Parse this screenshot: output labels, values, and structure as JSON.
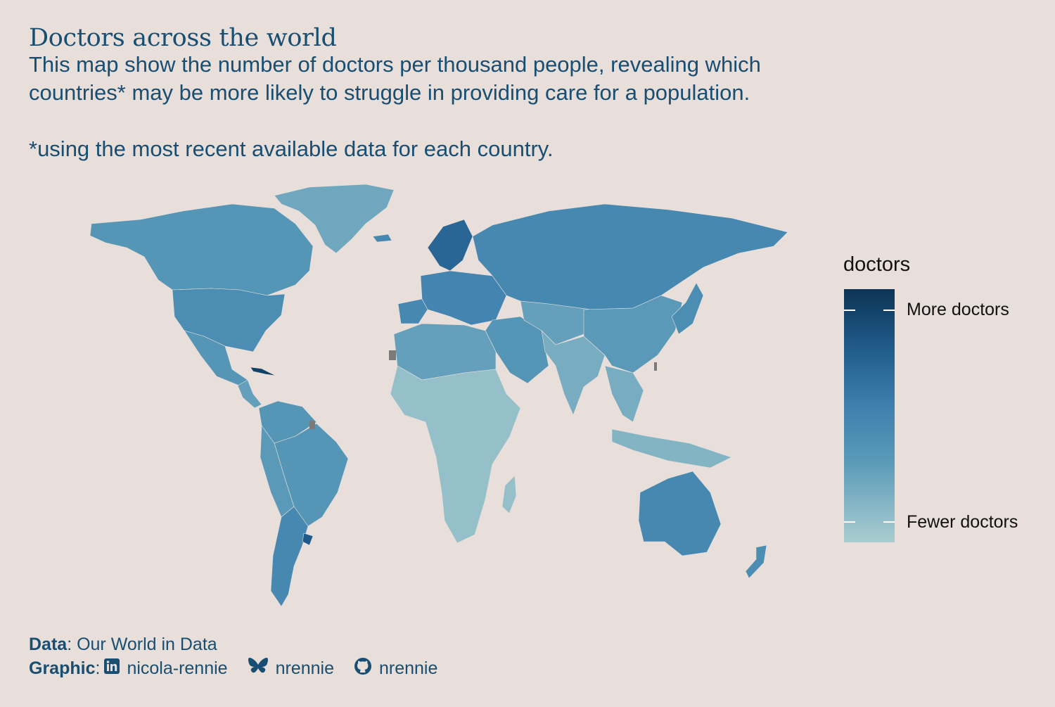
{
  "title": "Doctors across the world",
  "subtitle": {
    "line1": "This map show the number of doctors per thousand people, revealing which",
    "line2": "countries* may be more likely to struggle in providing care for a population.",
    "note": "*using the most recent available data for each country."
  },
  "legend": {
    "title": "doctors",
    "high_label": "More doctors",
    "low_label": "Fewer doctors",
    "high_color": "#0d3454",
    "low_color": "#a9cdd0"
  },
  "footer": {
    "data_label": "Data",
    "data_source": ": Our World in Data",
    "graphic_label": "Graphic",
    "linkedin_icon": "linkedin-icon",
    "linkedin": "nicola-rennie",
    "bluesky_icon": "bluesky-icon",
    "bluesky": "nrennie",
    "github_icon": "github-icon",
    "github": "nrennie"
  },
  "colors": {
    "background": "#e8dfdb",
    "text": "#174e72",
    "no_data": "#7a7a7a"
  },
  "map_regions": [
    {
      "name": "greenland",
      "level": 0.3
    },
    {
      "name": "canada",
      "level": 0.45
    },
    {
      "name": "usa",
      "level": 0.55
    },
    {
      "name": "mexico",
      "level": 0.45
    },
    {
      "name": "central-america",
      "level": 0.35
    },
    {
      "name": "cuba",
      "level": 0.95
    },
    {
      "name": "colombia-venezuela",
      "level": 0.45
    },
    {
      "name": "brazil",
      "level": 0.45
    },
    {
      "name": "peru-bolivia",
      "level": 0.4
    },
    {
      "name": "argentina-chile",
      "level": 0.6
    },
    {
      "name": "uruguay",
      "level": 0.85
    },
    {
      "name": "scandinavia",
      "level": 0.8
    },
    {
      "name": "western-europe",
      "level": 0.65
    },
    {
      "name": "iberia",
      "level": 0.6
    },
    {
      "name": "russia",
      "level": 0.6
    },
    {
      "name": "middle-east",
      "level": 0.45
    },
    {
      "name": "north-africa",
      "level": 0.35
    },
    {
      "name": "sub-saharan-africa",
      "level": 0.1
    },
    {
      "name": "central-asia",
      "level": 0.35
    },
    {
      "name": "south-asia",
      "level": 0.25
    },
    {
      "name": "china-mongolia",
      "level": 0.4
    },
    {
      "name": "japan-korea",
      "level": 0.55
    },
    {
      "name": "southeast-asia",
      "level": 0.25
    },
    {
      "name": "indonesia-png",
      "level": 0.2
    },
    {
      "name": "australia",
      "level": 0.6
    },
    {
      "name": "new-zealand",
      "level": 0.55
    },
    {
      "name": "iceland",
      "level": 0.6
    },
    {
      "name": "madagascar",
      "level": 0.1
    }
  ]
}
